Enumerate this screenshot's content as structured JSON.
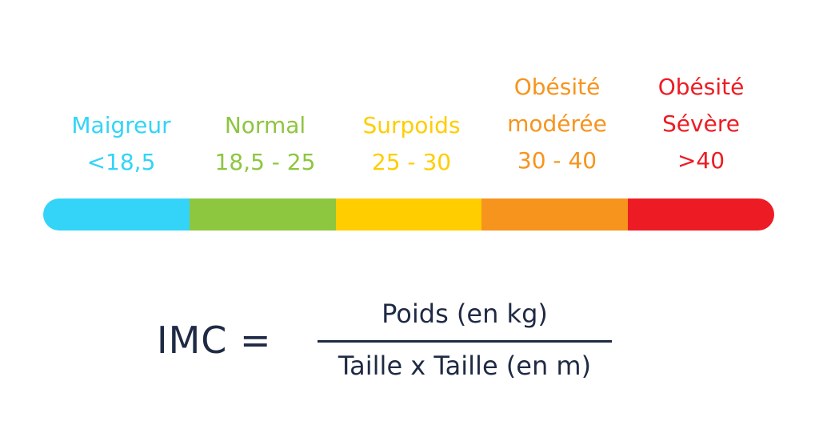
{
  "categories": [
    {
      "lines": [
        "Maigreur"
      ],
      "range": "<18,5",
      "color": "#33d4f7"
    },
    {
      "lines": [
        "Normal"
      ],
      "range": "18,5 - 25",
      "color": "#8dc63f"
    },
    {
      "lines": [
        "Surpoids"
      ],
      "range": "25 - 30",
      "color": "#ffcd00"
    },
    {
      "lines": [
        "Obésité",
        "modérée"
      ],
      "range": "30 - 40",
      "color": "#f7941d"
    },
    {
      "lines": [
        "Obésité",
        "Sévère"
      ],
      "range": ">40",
      "color": "#ed1c24"
    }
  ],
  "formula": {
    "lhs": "IMC =",
    "numerator": "Poids (en kg)",
    "denominator": "Taille x Taille (en m)",
    "color": "#1f2a44"
  }
}
